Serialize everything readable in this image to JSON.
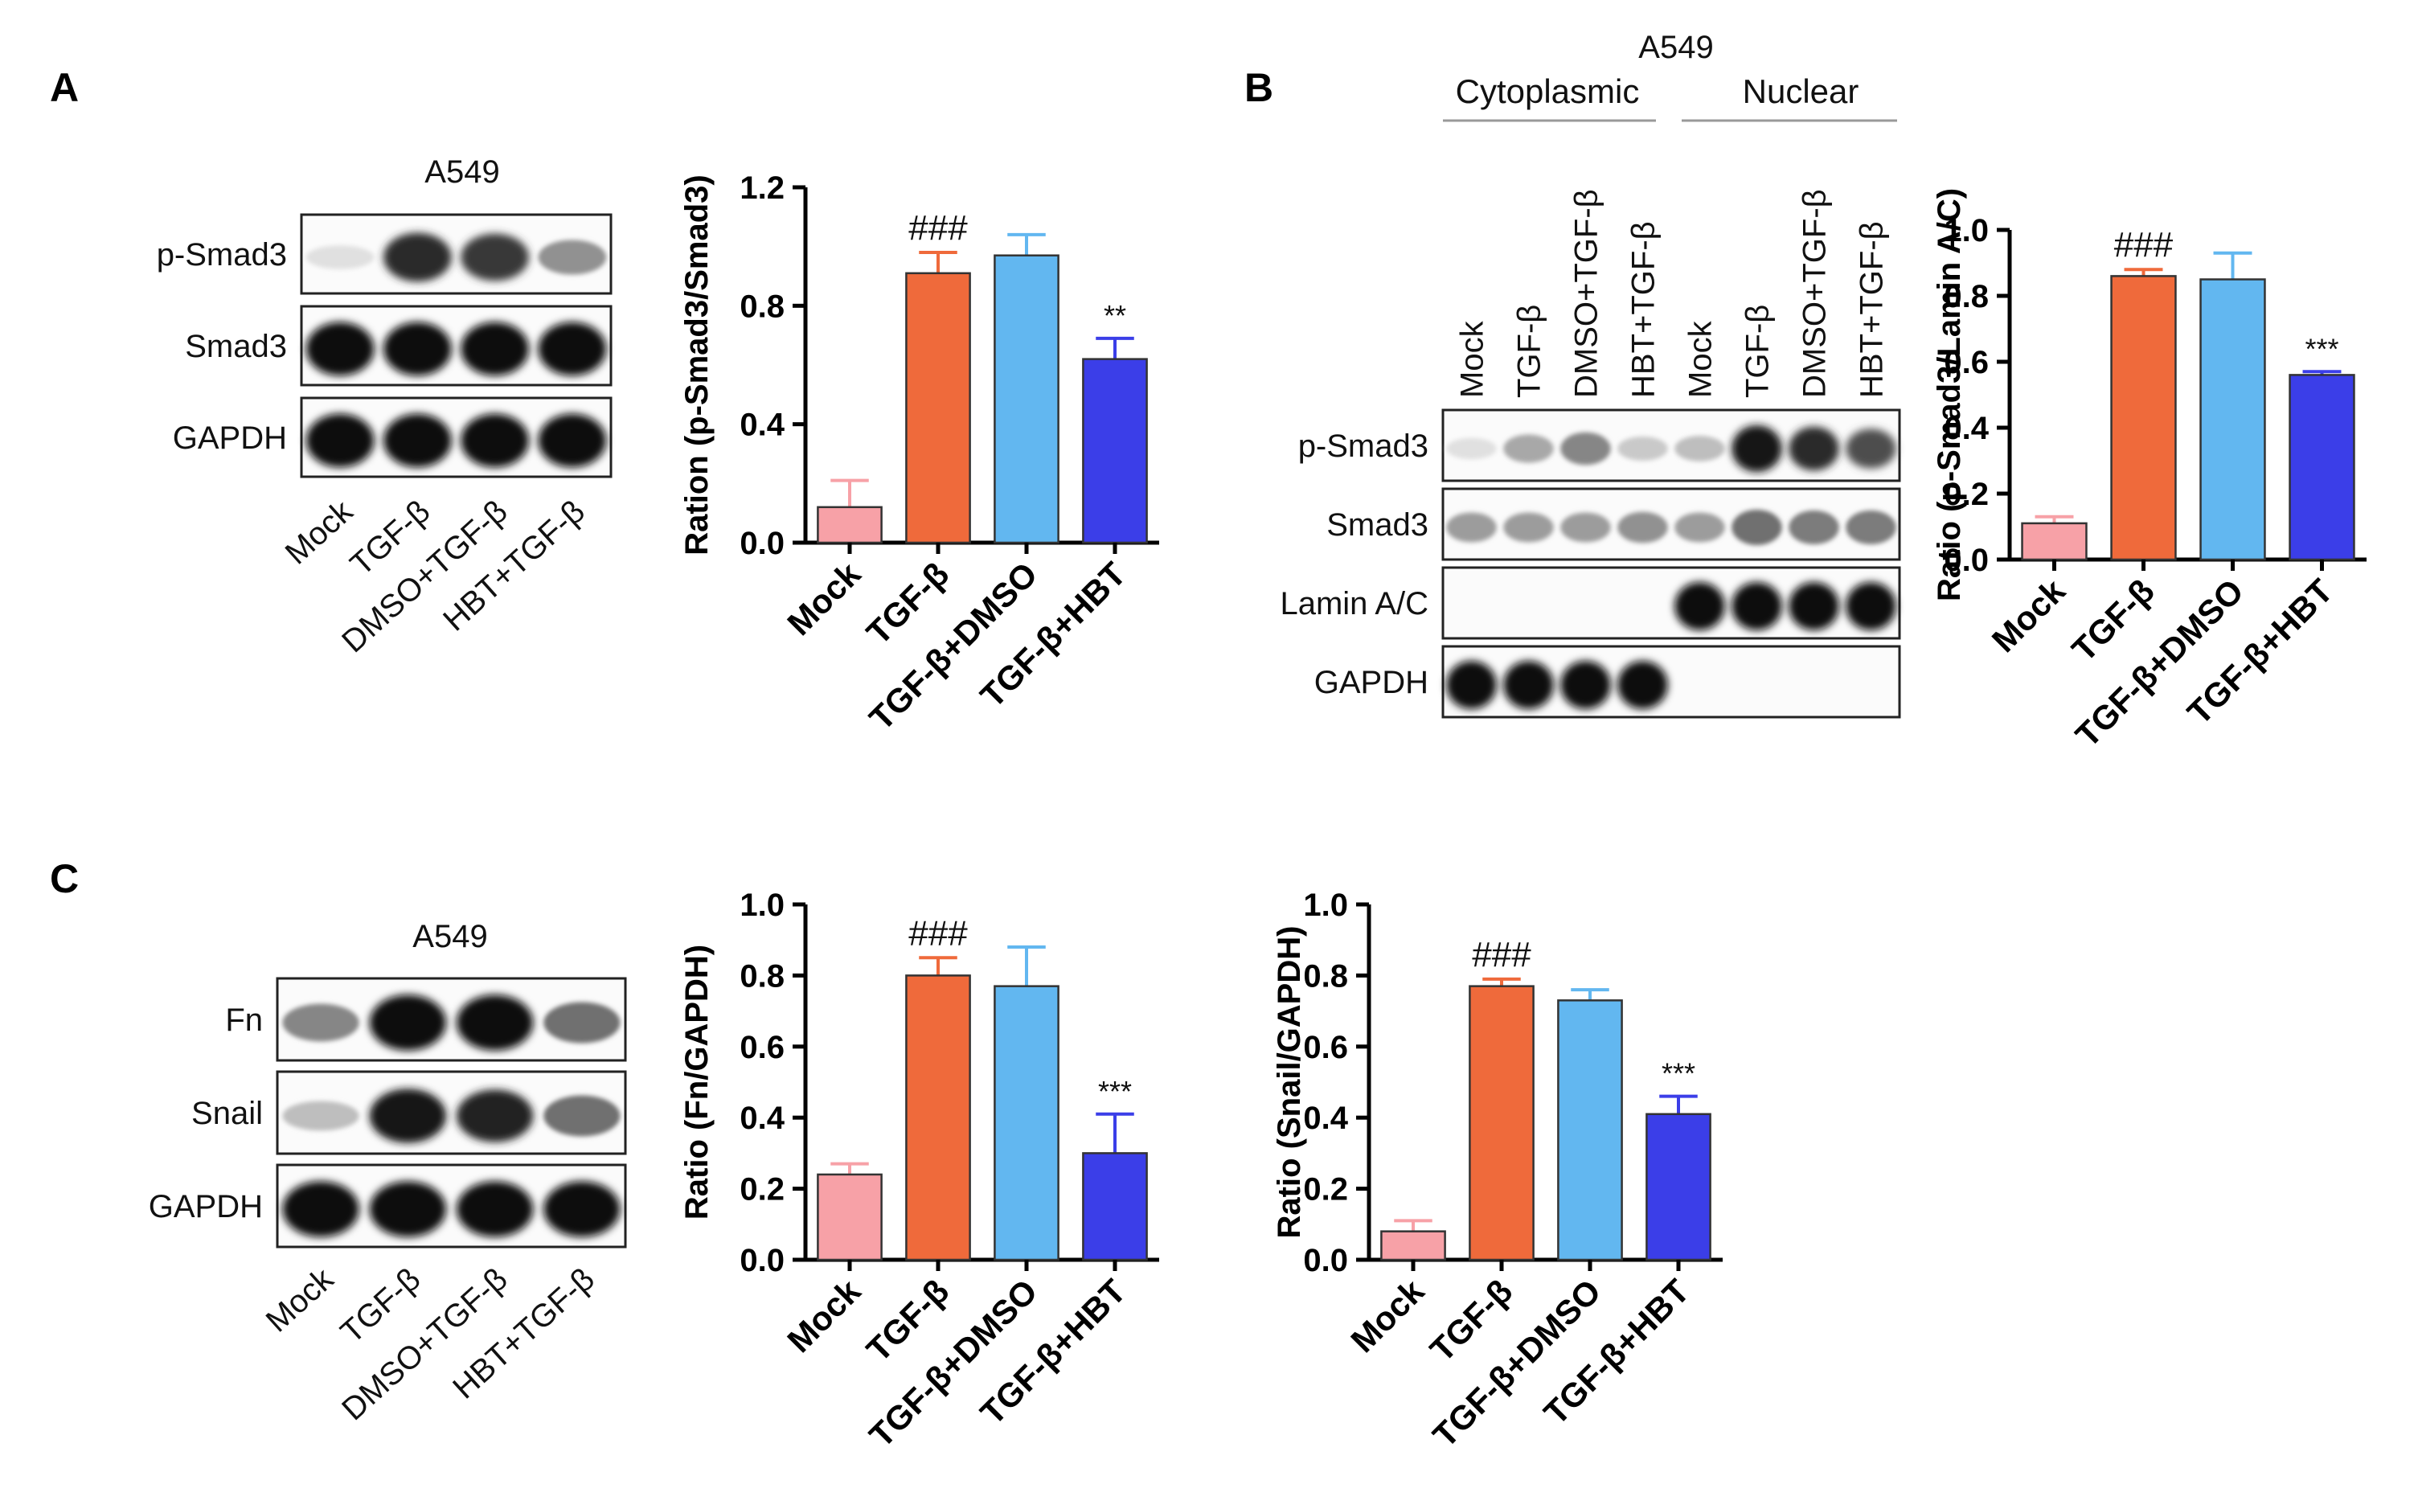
{
  "panels": {
    "A": {
      "letter": "A",
      "blot": {
        "cell_line": "A549",
        "rows": [
          "p-Smad3",
          "Smad3",
          "GAPDH"
        ],
        "lanes": [
          "Mock",
          "TGF-β",
          "DMSO+TGF-β",
          "HBT+TGF-β"
        ]
      }
    },
    "B": {
      "letter": "B",
      "blot": {
        "cell_line": "A549",
        "groups": [
          "Cytoplasmic",
          "Nuclear"
        ],
        "lanes": [
          "Mock",
          "TGF-β",
          "DMSO+TGF-β",
          "HBT+TGF-β",
          "Mock",
          "TGF-β",
          "DMSO+TGF-β",
          "HBT+TGF-β"
        ],
        "rows": [
          "p-Smad3",
          "Smad3",
          "Lamin A/C",
          "GAPDH"
        ]
      }
    },
    "C": {
      "letter": "C",
      "blot": {
        "cell_line": "A549",
        "rows": [
          "Fn",
          "Snail",
          "GAPDH"
        ],
        "lanes": [
          "Mock",
          "TGF-β",
          "DMSO+TGF-β",
          "HBT+TGF-β"
        ]
      }
    }
  },
  "colors": {
    "Mock": "#f7a1a7",
    "TGF-β": "#ef6a3b",
    "TGF-β+DMSO": "#62b7f0",
    "TGF-β+HBT": "#3b3ee8"
  },
  "chart_data": [
    {
      "id": "A",
      "type": "bar",
      "categories": [
        "Mock",
        "TGF-β",
        "TGF-β+DMSO",
        "TGF-β+HBT"
      ],
      "values": [
        0.12,
        0.91,
        0.97,
        0.62
      ],
      "errors": [
        0.09,
        0.07,
        0.07,
        0.07
      ],
      "annotations": [
        "",
        "###",
        "",
        "**"
      ],
      "ylabel": "Ration (p-Smad3/Smad3)",
      "ylim": [
        0,
        1.2
      ],
      "yticks": [
        "0.0",
        "0.4",
        "0.8",
        "1.2"
      ]
    },
    {
      "id": "B",
      "type": "bar",
      "categories": [
        "Mock",
        "TGF-β",
        "TGF-β+DMSO",
        "TGF-β+HBT"
      ],
      "values": [
        0.11,
        0.86,
        0.85,
        0.56
      ],
      "errors": [
        0.02,
        0.02,
        0.08,
        0.01
      ],
      "annotations": [
        "",
        "###",
        "",
        "***"
      ],
      "ylabel": "Ratio (p-Smad3/Lamin A/C)",
      "ylim": [
        0,
        1.0
      ],
      "yticks": [
        "0.0",
        "0.2",
        "0.4",
        "0.6",
        "0.8",
        "1.0"
      ]
    },
    {
      "id": "C1",
      "type": "bar",
      "categories": [
        "Mock",
        "TGF-β",
        "TGF-β+DMSO",
        "TGF-β+HBT"
      ],
      "values": [
        0.24,
        0.8,
        0.77,
        0.3
      ],
      "errors": [
        0.03,
        0.05,
        0.11,
        0.11
      ],
      "annotations": [
        "",
        "###",
        "",
        "***"
      ],
      "ylabel": "Ratio (Fn/GAPDH)",
      "ylim": [
        0,
        1.0
      ],
      "yticks": [
        "0.0",
        "0.2",
        "0.4",
        "0.6",
        "0.8",
        "1.0"
      ]
    },
    {
      "id": "C2",
      "type": "bar",
      "categories": [
        "Mock",
        "TGF-β",
        "TGF-β+DMSO",
        "TGF-β+HBT"
      ],
      "values": [
        0.08,
        0.77,
        0.73,
        0.41
      ],
      "errors": [
        0.03,
        0.02,
        0.03,
        0.05
      ],
      "annotations": [
        "",
        "###",
        "",
        "***"
      ],
      "ylabel": "Ratio (Snail/GAPDH)",
      "ylim": [
        0,
        1.0
      ],
      "yticks": [
        "0.0",
        "0.2",
        "0.4",
        "0.6",
        "0.8",
        "1.0"
      ]
    }
  ],
  "band_intensity": {
    "A": [
      [
        0.05,
        0.85,
        0.8,
        0.4
      ],
      [
        1,
        1,
        1,
        1
      ],
      [
        1,
        1,
        1,
        1
      ]
    ],
    "B": [
      [
        0.05,
        0.3,
        0.45,
        0.15,
        0.2,
        0.95,
        0.85,
        0.7
      ],
      [
        0.35,
        0.35,
        0.35,
        0.4,
        0.35,
        0.55,
        0.5,
        0.5
      ],
      [
        0,
        0,
        0,
        0,
        1,
        1,
        1,
        1
      ],
      [
        1,
        1,
        1,
        1,
        0,
        0,
        0,
        0
      ]
    ],
    "C": [
      [
        0.45,
        1,
        1,
        0.55
      ],
      [
        0.2,
        0.95,
        0.9,
        0.55
      ],
      [
        1,
        1,
        1,
        1
      ]
    ]
  }
}
